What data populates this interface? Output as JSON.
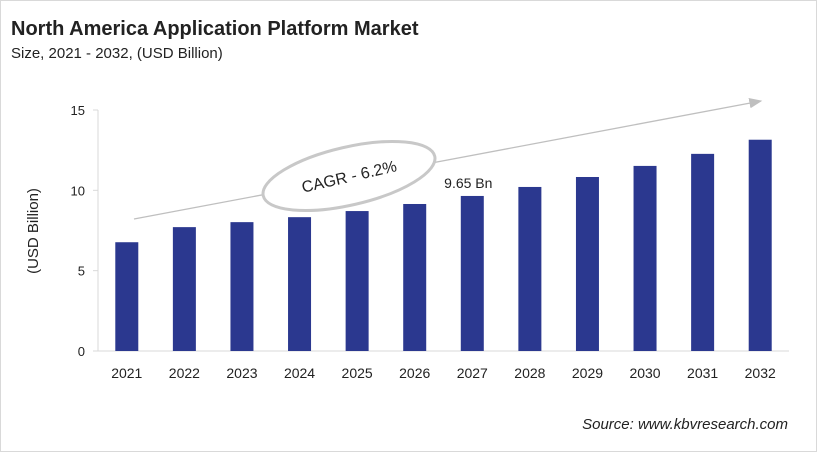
{
  "chart_data": {
    "type": "bar",
    "title": "North America Application Platform Market",
    "subtitle": "Size, 2021 - 2032, (USD Billion)",
    "xlabel": "",
    "ylabel": "(USD Billion)",
    "ylim": [
      0,
      15
    ],
    "yticks": [
      0,
      5,
      10,
      15
    ],
    "categories": [
      "2021",
      "2022",
      "2023",
      "2024",
      "2025",
      "2026",
      "2027",
      "2028",
      "2029",
      "2030",
      "2031",
      "2032"
    ],
    "values": [
      6.77,
      7.71,
      8.02,
      8.33,
      8.71,
      9.15,
      9.65,
      10.21,
      10.83,
      11.52,
      12.27,
      13.15
    ],
    "data_labels": [
      {
        "category": "2027",
        "text": "9.65 Bn"
      }
    ],
    "annotation": "CAGR - 6.2%",
    "grid": false,
    "legend": "none",
    "bar_color": "#2b388f"
  },
  "source": "Source: www.kbvresearch.com"
}
